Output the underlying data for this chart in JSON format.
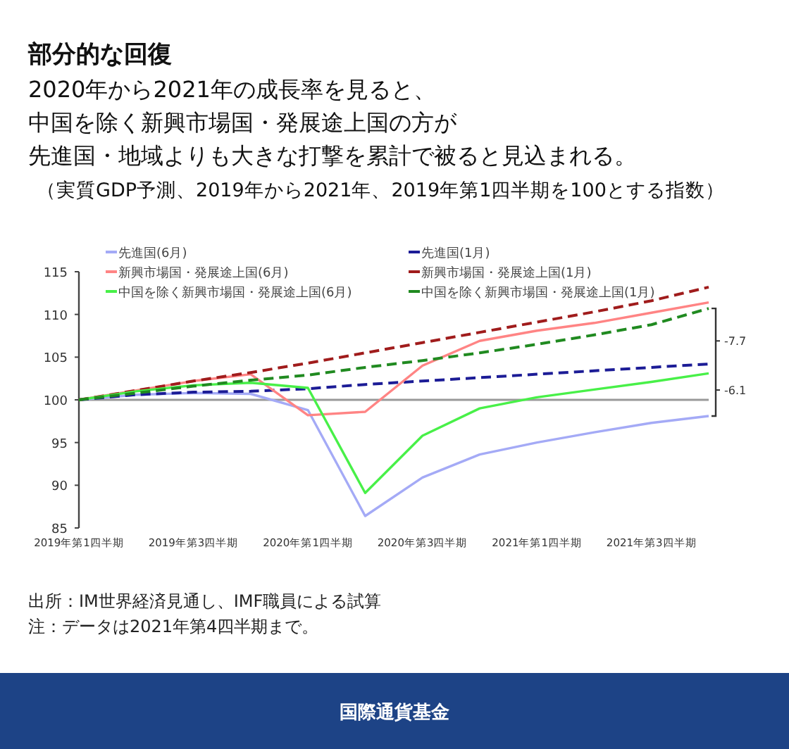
{
  "chart_data": {
    "type": "line",
    "title": "部分的な回復",
    "subtitle": "（実質GDP予測、2019年から2021年、2019年第1四半期を100とする指数）",
    "categories": [
      "2019年第1四半期",
      null,
      "2019年第3四半期",
      null,
      "2020年第1四半期",
      null,
      "2020年第3四半期",
      null,
      "2021年第1四半期",
      null,
      "2021年第3四半期",
      null
    ],
    "series": [
      {
        "name": "先進国(6月)",
        "color": "#a4aaf6",
        "line_style": "solid",
        "values": [
          100,
          100.6,
          100.8,
          100.7,
          98.8,
          86.4,
          90.9,
          93.6,
          95.0,
          96.2,
          97.3,
          98.1
        ]
      },
      {
        "name": "先進国(1月)",
        "color": "#1c1c96",
        "line_style": "dashed",
        "values": [
          100,
          100.6,
          100.9,
          101.0,
          101.3,
          101.8,
          102.2,
          102.6,
          103.0,
          103.4,
          103.8,
          104.2
        ]
      },
      {
        "name": "新興市場国・発展途上国(6月)",
        "color": "#ff8484",
        "line_style": "solid",
        "values": [
          100,
          101.1,
          102.2,
          103.0,
          98.2,
          98.6,
          104.0,
          106.9,
          108.1,
          109.0,
          110.2,
          111.4
        ]
      },
      {
        "name": "新興市場国・発展途上国(1月)",
        "color": "#a01c1c",
        "line_style": "dashed",
        "values": [
          100,
          101.1,
          102.2,
          103.2,
          104.3,
          105.5,
          106.7,
          107.9,
          109.1,
          110.3,
          111.6,
          113.2
        ]
      },
      {
        "name": "中国を除く新興市場国・発展途上国(6月)",
        "color": "#48f048",
        "line_style": "solid",
        "values": [
          100,
          101.0,
          101.7,
          102.0,
          101.4,
          89.1,
          95.8,
          99.0,
          100.3,
          101.2,
          102.1,
          103.1
        ]
      },
      {
        "name": "中国を除く新興市場国・発展途上国(1月)",
        "color": "#208a20",
        "line_style": "dashed",
        "values": [
          100,
          100.8,
          101.6,
          102.3,
          102.9,
          103.8,
          104.6,
          105.5,
          106.5,
          107.6,
          108.8,
          110.7
        ]
      }
    ],
    "ylim": [
      85,
      115
    ],
    "yticks": [
      85,
      90,
      95,
      100,
      105,
      110,
      115
    ],
    "grid": false,
    "legend": "top",
    "marker": "none",
    "ref_lines": [
      {
        "axis": "y",
        "value": 100,
        "color": "#999999",
        "line_style": "solid"
      }
    ],
    "annotations": [
      "-7.7",
      "-6.1",
      "2020年から2021年の成長率を見ると、",
      "中国を除く新興市場国・発展途上国の方が",
      "先進国・地域よりも大きな打撃を累計で被ると見込まれる。",
      "出所：IM世界経済見通し、IMF職員による試算",
      "注：データは2021年第4四半期まで。",
      "国際通貨基金"
    ]
  }
}
